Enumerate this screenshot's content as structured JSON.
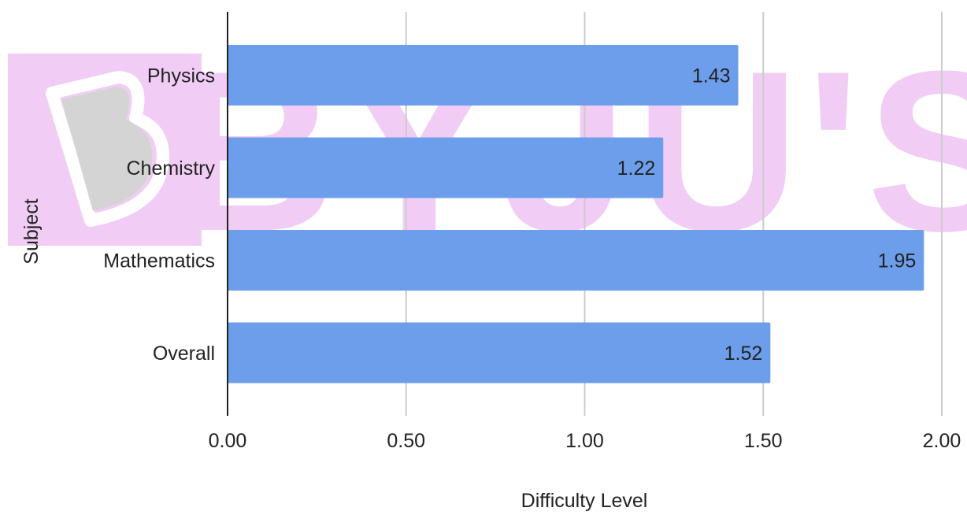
{
  "watermark": {
    "logo_text": "BYJU'S",
    "color": "#f0c8f5",
    "logo_letter_color": "#d0d0d0"
  },
  "chart_data": {
    "type": "bar",
    "orientation": "horizontal",
    "categories": [
      "Physics",
      "Chemistry",
      "Mathematics",
      "Overall"
    ],
    "values": [
      1.43,
      1.22,
      1.95,
      1.52
    ],
    "data_labels": [
      "1.43",
      "1.22",
      "1.95",
      "1.52"
    ],
    "title": "",
    "xlabel": "Difficulty Level",
    "ylabel": "Subject",
    "xlim": [
      0,
      2
    ],
    "xticks": [
      0,
      0.5,
      1,
      1.5,
      2
    ],
    "xtick_labels": [
      "0.00",
      "0.50",
      "1.00",
      "1.50",
      "2.00"
    ],
    "grid": true,
    "bar_color": "#6d9eeb",
    "gridline_color": "#cccccc",
    "axis_color": "#222222",
    "label_color": "#222222"
  }
}
